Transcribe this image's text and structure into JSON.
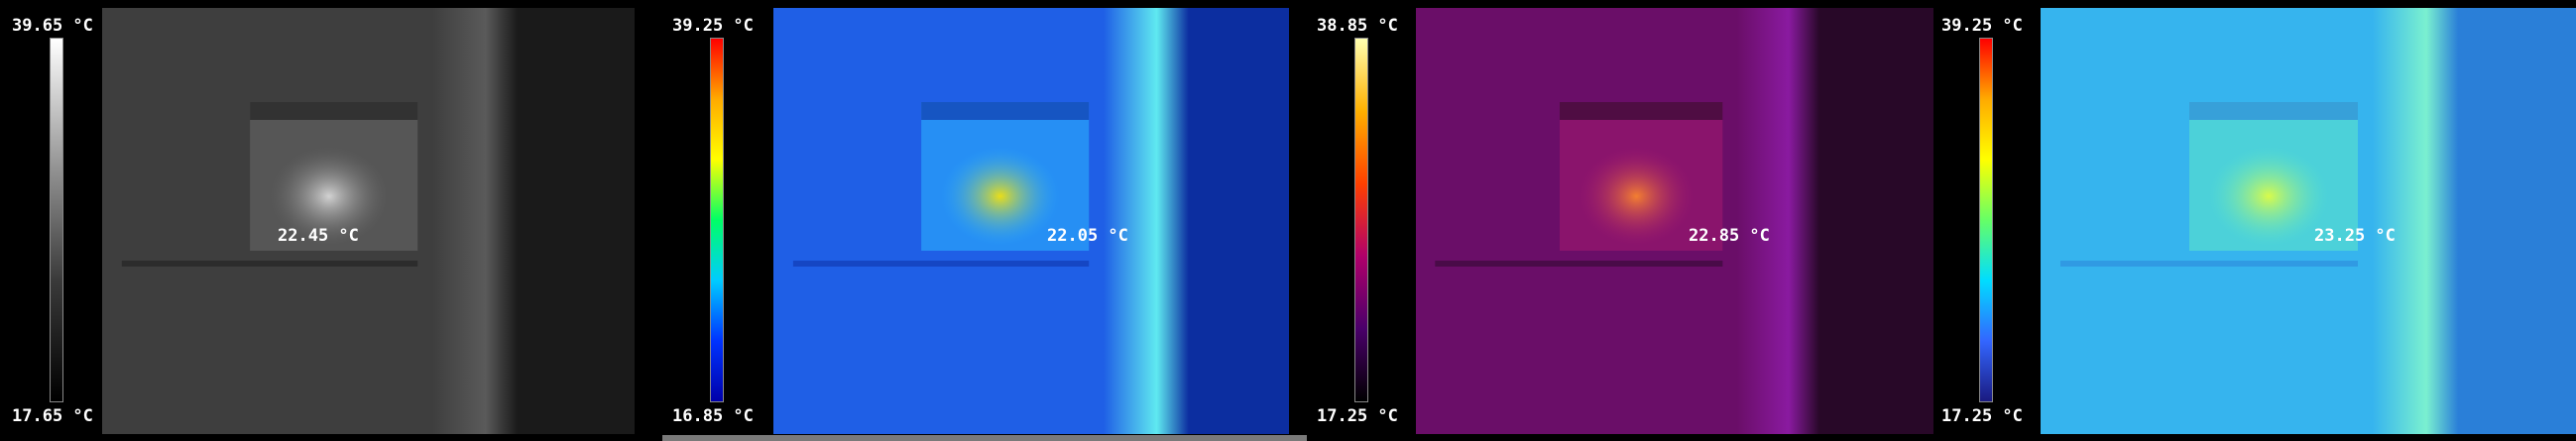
{
  "panels": [
    {
      "palette": "grayscale",
      "scale_max": "39.65 °C",
      "scale_min": "17.65 °C",
      "readout": "22.45 °C",
      "bar_gradient": [
        "#ffffff",
        "#9a9a9a",
        "#3a3a3a",
        "#000000"
      ],
      "base": "#3e3e3e",
      "dark": "#1a1a1a",
      "mid": "#6a6a6a",
      "hot": "#e0e0e0",
      "band": "#5a5a5a"
    },
    {
      "palette": "rainbow",
      "scale_max": "39.25 °C",
      "scale_min": "16.85 °C",
      "readout": "22.05 °C",
      "bar_gradient": [
        "#ff0000",
        "#ffaa00",
        "#ffff00",
        "#00ff66",
        "#00ccff",
        "#0033ff",
        "#0000aa"
      ],
      "base": "#1f5fe6",
      "dark": "#0c2ea0",
      "mid": "#2bb7ff",
      "hot": "#ffe600",
      "band": "#5fe9f0"
    },
    {
      "palette": "ironbow",
      "scale_max": "38.85 °C",
      "scale_min": "17.25 °C",
      "readout": "22.85 °C",
      "bar_gradient": [
        "#ffffb0",
        "#ffb000",
        "#ff4000",
        "#b0006a",
        "#4a006a",
        "#000000"
      ],
      "base": "#6a0e68",
      "dark": "#280828",
      "mid": "#a41a70",
      "hot": "#ff8a2a",
      "band": "#8a1aa0"
    },
    {
      "palette": "rainbow-high",
      "scale_max": "39.25 °C",
      "scale_min": "17.25 °C",
      "readout": "23.25 °C",
      "bar_gradient": [
        "#ff0000",
        "#ffaa00",
        "#ffff00",
        "#66ff66",
        "#00ddff",
        "#3366ff",
        "#1a1a80"
      ],
      "base": "#36b4ee",
      "dark": "#2a7fd8",
      "mid": "#5fe9c8",
      "hot": "#e8ff3a",
      "band": "#7af0d0"
    }
  ]
}
